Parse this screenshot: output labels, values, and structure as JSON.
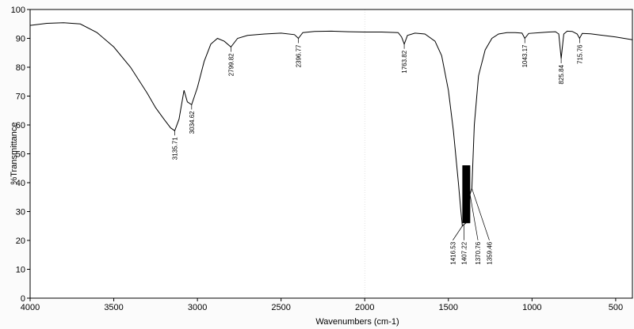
{
  "chart_data": {
    "type": "line",
    "xlabel": "Wavenumbers (cm-1)",
    "ylabel": "%Transmittance",
    "xlim": [
      4000,
      400
    ],
    "ylim": [
      0,
      100
    ],
    "x_ticks": [
      4000,
      3500,
      3000,
      2500,
      2000,
      1500,
      1000,
      500
    ],
    "y_ticks": [
      0,
      10,
      20,
      30,
      40,
      50,
      60,
      70,
      80,
      90,
      100
    ],
    "grid": false,
    "series": [
      {
        "x": [
          4000,
          3900,
          3800,
          3700,
          3600,
          3500,
          3400,
          3300,
          3250,
          3200,
          3160,
          3135.71,
          3110,
          3080,
          3060,
          3034.62,
          3000,
          2960,
          2920,
          2880,
          2840,
          2799.82,
          2760,
          2700,
          2600,
          2500,
          2420,
          2396.77,
          2370,
          2300,
          2200,
          2100,
          2000,
          1900,
          1800,
          1780,
          1763.82,
          1745,
          1700,
          1640,
          1580,
          1540,
          1500,
          1470,
          1440,
          1425,
          1416.53,
          1407.22,
          1395,
          1380,
          1370.76,
          1359.46,
          1345,
          1320,
          1280,
          1240,
          1200,
          1150,
          1100,
          1060,
          1043.17,
          1020,
          950,
          900,
          860,
          840,
          825.84,
          810,
          790,
          760,
          730,
          715.76,
          700,
          650,
          600,
          500,
          400
        ],
        "y": [
          94.5,
          95.2,
          95.4,
          95,
          92,
          87,
          80,
          71,
          66,
          62,
          59,
          58,
          62,
          72,
          68,
          67,
          73,
          82,
          88,
          90,
          89,
          87,
          90,
          91,
          91.5,
          91.8,
          91.3,
          90,
          92,
          92.4,
          92.5,
          92.3,
          92.2,
          92.2,
          92,
          90.5,
          88,
          91,
          91.8,
          91.5,
          89,
          84,
          72,
          58,
          40,
          30,
          25,
          25.5,
          26,
          28,
          36,
          38,
          60,
          77,
          86,
          90,
          91.5,
          92,
          92,
          91.8,
          90,
          91.7,
          92,
          92.2,
          92.3,
          91.5,
          83,
          91.5,
          92.5,
          92.4,
          91.5,
          90,
          91.7,
          91.6,
          91.2,
          90.5,
          89.5
        ]
      }
    ],
    "peak_labels": [
      {
        "x": 3135.71,
        "y": 58,
        "text": "3135.71"
      },
      {
        "x": 3034.62,
        "y": 67,
        "text": "3034.62"
      },
      {
        "x": 2799.82,
        "y": 87,
        "text": "2799.82"
      },
      {
        "x": 2396.77,
        "y": 90,
        "text": "2396.77"
      },
      {
        "x": 1763.82,
        "y": 88,
        "text": "1763.82"
      },
      {
        "x": 1416.53,
        "y": 25,
        "text": "1416.53"
      },
      {
        "x": 1407.22,
        "y": 25.5,
        "text": "1407.22"
      },
      {
        "x": 1370.76,
        "y": 36,
        "text": "1370.76"
      },
      {
        "x": 1359.46,
        "y": 38,
        "text": "1359.46"
      },
      {
        "x": 1043.17,
        "y": 90,
        "text": "1043.17"
      },
      {
        "x": 825.84,
        "y": 83,
        "text": "825.84"
      },
      {
        "x": 715.76,
        "y": 90,
        "text": "715.76"
      }
    ],
    "colors": {
      "line": "#000000",
      "axis": "#000000",
      "background": "#ffffff"
    }
  }
}
